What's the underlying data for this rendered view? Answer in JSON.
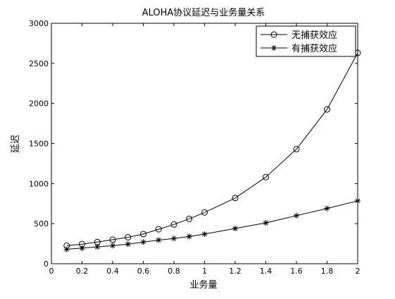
{
  "chart_data": {
    "type": "line",
    "title": "ALOHA协议延迟与业务量关系",
    "xlabel": "业务量",
    "ylabel": "延迟",
    "xlim": [
      0,
      2
    ],
    "ylim": [
      0,
      3000
    ],
    "x_ticks": [
      "0",
      "0.2",
      "0.4",
      "0.6",
      "0.8",
      "1",
      "1.2",
      "1.4",
      "1.6",
      "1.8",
      "2"
    ],
    "y_ticks": [
      "0",
      "500",
      "1000",
      "1500",
      "2000",
      "2500",
      "3000"
    ],
    "grid": false,
    "legend_position": "top-right",
    "series": [
      {
        "name": "无捕获效应",
        "marker": "circle",
        "color": "#000000",
        "x": [
          0.1,
          0.2,
          0.3,
          0.4,
          0.5,
          0.6,
          0.7,
          0.8,
          0.9,
          1.0,
          1.2,
          1.4,
          1.6,
          1.8,
          2.0
        ],
        "values": [
          225,
          245,
          270,
          300,
          330,
          370,
          430,
          490,
          560,
          640,
          820,
          1080,
          1430,
          1925,
          2630
        ]
      },
      {
        "name": "有捕获效应",
        "marker": "asterisk",
        "color": "#000000",
        "x": [
          0.1,
          0.2,
          0.3,
          0.4,
          0.5,
          0.6,
          0.7,
          0.8,
          0.9,
          1.0,
          1.2,
          1.4,
          1.6,
          1.8,
          2.0
        ],
        "values": [
          180,
          195,
          210,
          225,
          245,
          270,
          295,
          315,
          340,
          370,
          440,
          510,
          600,
          690,
          785
        ]
      }
    ]
  }
}
